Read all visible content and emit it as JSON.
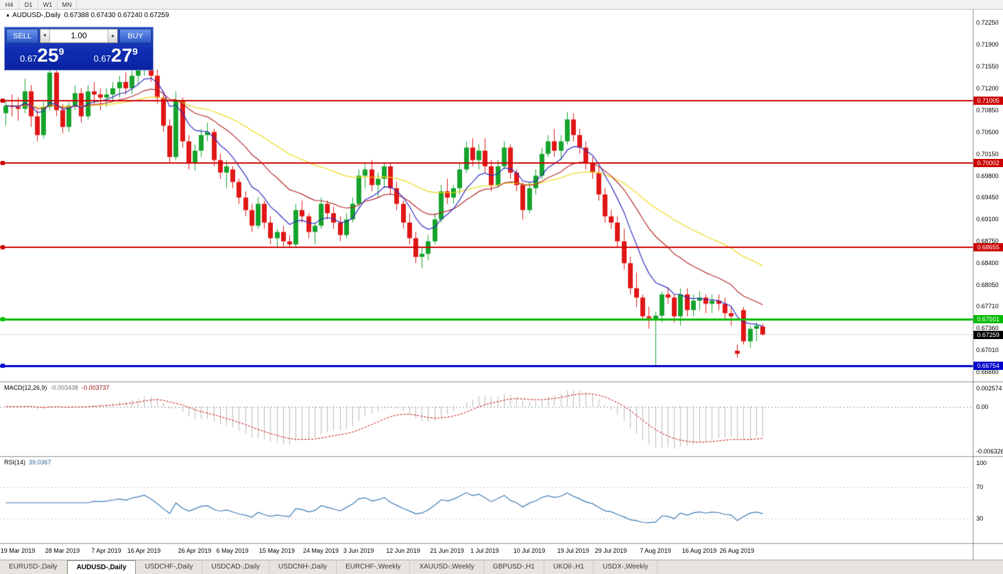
{
  "window": {
    "timeframe_buttons": [
      "H4",
      "D1",
      "W1",
      "MN"
    ]
  },
  "chart_header": {
    "collapse_icon": "▲",
    "symbol": "AUDUSD-,Daily",
    "ohlc": "0.67388 0.67430 0.67240 0.67259"
  },
  "trade_panel": {
    "sell_label": "SELL",
    "buy_label": "BUY",
    "volume": "1.00",
    "sell_price": {
      "prefix": "0.67",
      "big": "25",
      "sup": "9"
    },
    "buy_price": {
      "prefix": "0.67",
      "big": "27",
      "sup": "9"
    }
  },
  "price_axis": {
    "labels": [
      "0.72250",
      "0.71900",
      "0.71550",
      "0.71200",
      "0.70850",
      "0.70500",
      "0.70150",
      "0.69800",
      "0.69450",
      "0.69100",
      "0.68750",
      "0.68400",
      "0.68050",
      "0.67710",
      "0.67360",
      "0.67010",
      "0.66660"
    ]
  },
  "hlines": [
    {
      "value": 0.71005,
      "label": "0.71005",
      "color": "#cc0000",
      "thickness": 2
    },
    {
      "value": 0.70002,
      "label": "0.70002",
      "color": "#cc0000",
      "thickness": 2
    },
    {
      "value": 0.68655,
      "label": "0.68655",
      "color": "#cc0000",
      "thickness": 2
    },
    {
      "value": 0.67501,
      "label": "0.67501",
      "color": "#00bb00",
      "thickness": 3
    },
    {
      "value": 0.66754,
      "label": "0.66754",
      "color": "#0000cc",
      "thickness": 3
    }
  ],
  "current_price": {
    "label": "0.67259",
    "value": 0.67259
  },
  "date_axis": [
    {
      "label": "19 Mar 2019",
      "bar": 2
    },
    {
      "label": "28 Mar 2019",
      "bar": 9
    },
    {
      "label": "7 Apr 2019",
      "bar": 16
    },
    {
      "label": "16 Apr 2019",
      "bar": 22
    },
    {
      "label": "26 Apr 2019",
      "bar": 30
    },
    {
      "label": "6 May 2019",
      "bar": 36
    },
    {
      "label": "15 May 2019",
      "bar": 43
    },
    {
      "label": "24 May 2019",
      "bar": 50
    },
    {
      "label": "3 Jun 2019",
      "bar": 56
    },
    {
      "label": "12 Jun 2019",
      "bar": 63
    },
    {
      "label": "21 Jun 2019",
      "bar": 70
    },
    {
      "label": "1 Jul 2019",
      "bar": 76
    },
    {
      "label": "10 Jul 2019",
      "bar": 83
    },
    {
      "label": "19 Jul 2019",
      "bar": 90
    },
    {
      "label": "29 Jul 2019",
      "bar": 96
    },
    {
      "label": "7 Aug 2019",
      "bar": 103
    },
    {
      "label": "16 Aug 2019",
      "bar": 110
    },
    {
      "label": "26 Aug 2019",
      "bar": 116
    }
  ],
  "macd_panel": {
    "name": "MACD(12,26,9)",
    "value_main": "-0.003438",
    "value_signal": "-0.003737",
    "axis": {
      "top_label": "0.002574",
      "zero_label": "0.00",
      "bottom_label": "-0.006326",
      "top": 0.002574,
      "bottom": -0.006326
    }
  },
  "rsi_panel": {
    "name": "RSI(14)",
    "value": "39.0367",
    "levels": [
      {
        "label": "100",
        "value": 100
      },
      {
        "label": "70",
        "value": 70
      },
      {
        "label": "30",
        "value": 30
      }
    ]
  },
  "tabs": [
    {
      "label": "EURUSD-,Daily",
      "active": false
    },
    {
      "label": "AUDUSD-,Daily",
      "active": true
    },
    {
      "label": "USDCHF-,Daily",
      "active": false
    },
    {
      "label": "USDCAD-,Daily",
      "active": false
    },
    {
      "label": "USDCNH-,Daily",
      "active": false
    },
    {
      "label": "EURCHF-,Weekly",
      "active": false
    },
    {
      "label": "XAUUSD-,Weekly",
      "active": false
    },
    {
      "label": "GBPUSD-,H1",
      "active": false
    },
    {
      "label": "UKOil-,H1",
      "active": false
    },
    {
      "label": "USDX-,Weekly",
      "active": false
    }
  ],
  "colors": {
    "bull": "#16a32c",
    "bear": "#e01616",
    "ma_fast": "#2b2bc0",
    "ma_mid": "#b42828",
    "ma_slow": "#ecd714",
    "macd_hist": "#b9b9b9",
    "macd_signal": "#c40000",
    "rsi": "#3a76b0",
    "current_badge_bg": "#000000"
  },
  "chart_data": {
    "type": "candlestick",
    "symbol": "AUDUSD",
    "timeframe": "Daily",
    "last_bar": {
      "open": 0.67388,
      "high": 0.6743,
      "low": 0.6724,
      "close": 0.67259
    },
    "price_range_shown": [
      0.6666,
      0.7225
    ],
    "candles": [
      [
        0.708,
        0.71,
        0.706,
        0.7092
      ],
      [
        0.7092,
        0.711,
        0.7075,
        0.709
      ],
      [
        0.709,
        0.7105,
        0.7068,
        0.7087
      ],
      [
        0.7087,
        0.7135,
        0.708,
        0.7115
      ],
      [
        0.7115,
        0.7125,
        0.7058,
        0.7075
      ],
      [
        0.7075,
        0.7085,
        0.7035,
        0.7045
      ],
      [
        0.7045,
        0.7098,
        0.704,
        0.709
      ],
      [
        0.709,
        0.7155,
        0.7085,
        0.7145
      ],
      [
        0.7145,
        0.715,
        0.7075,
        0.7085
      ],
      [
        0.7085,
        0.7095,
        0.7048,
        0.7058
      ],
      [
        0.7058,
        0.7098,
        0.705,
        0.7092
      ],
      [
        0.7092,
        0.7125,
        0.7085,
        0.7112
      ],
      [
        0.7112,
        0.712,
        0.7065,
        0.7075
      ],
      [
        0.7075,
        0.7125,
        0.707,
        0.7115
      ],
      [
        0.7115,
        0.713,
        0.7095,
        0.711
      ],
      [
        0.711,
        0.712,
        0.7085,
        0.7105
      ],
      [
        0.7105,
        0.712,
        0.709,
        0.711
      ],
      [
        0.711,
        0.713,
        0.71,
        0.712
      ],
      [
        0.712,
        0.714,
        0.7105,
        0.713
      ],
      [
        0.713,
        0.7145,
        0.711,
        0.712
      ],
      [
        0.712,
        0.715,
        0.711,
        0.714
      ],
      [
        0.714,
        0.716,
        0.7125,
        0.715
      ],
      [
        0.715,
        0.7175,
        0.714,
        0.7165
      ],
      [
        0.7165,
        0.717,
        0.713,
        0.714
      ],
      [
        0.714,
        0.715,
        0.7095,
        0.7105
      ],
      [
        0.7105,
        0.7115,
        0.705,
        0.706
      ],
      [
        0.706,
        0.707,
        0.7,
        0.701
      ],
      [
        0.701,
        0.7115,
        0.7005,
        0.71
      ],
      [
        0.71,
        0.7105,
        0.7025,
        0.7035
      ],
      [
        0.7035,
        0.7045,
        0.699,
        0.7
      ],
      [
        0.7,
        0.703,
        0.6988,
        0.702
      ],
      [
        0.702,
        0.7055,
        0.701,
        0.7045
      ],
      [
        0.7045,
        0.7065,
        0.7035,
        0.705
      ],
      [
        0.705,
        0.7055,
        0.6995,
        0.7005
      ],
      [
        0.7005,
        0.7015,
        0.6975,
        0.6985
      ],
      [
        0.6985,
        0.7005,
        0.696,
        0.6995
      ],
      [
        0.699,
        0.6995,
        0.696,
        0.697
      ],
      [
        0.697,
        0.6975,
        0.6935,
        0.6945
      ],
      [
        0.6945,
        0.6955,
        0.6915,
        0.6925
      ],
      [
        0.6925,
        0.6935,
        0.689,
        0.69
      ],
      [
        0.69,
        0.6945,
        0.6895,
        0.6935
      ],
      [
        0.6935,
        0.694,
        0.6895,
        0.6905
      ],
      [
        0.6905,
        0.6915,
        0.687,
        0.688
      ],
      [
        0.688,
        0.6895,
        0.6865,
        0.689
      ],
      [
        0.689,
        0.69,
        0.6867,
        0.6875
      ],
      [
        0.6875,
        0.6885,
        0.6865,
        0.687
      ],
      [
        0.687,
        0.6935,
        0.6866,
        0.6925
      ],
      [
        0.6925,
        0.694,
        0.6905,
        0.6915
      ],
      [
        0.6915,
        0.692,
        0.688,
        0.689
      ],
      [
        0.689,
        0.6905,
        0.687,
        0.69
      ],
      [
        0.69,
        0.6945,
        0.6895,
        0.6935
      ],
      [
        0.6935,
        0.694,
        0.691,
        0.692
      ],
      [
        0.692,
        0.693,
        0.6895,
        0.6905
      ],
      [
        0.6905,
        0.6915,
        0.6875,
        0.6885
      ],
      [
        0.6885,
        0.692,
        0.688,
        0.691
      ],
      [
        0.691,
        0.6945,
        0.6905,
        0.6935
      ],
      [
        0.6935,
        0.699,
        0.693,
        0.698
      ],
      [
        0.698,
        0.7,
        0.696,
        0.699
      ],
      [
        0.699,
        0.7005,
        0.6955,
        0.6965
      ],
      [
        0.6965,
        0.6985,
        0.6945,
        0.6975
      ],
      [
        0.6975,
        0.7,
        0.696,
        0.6995
      ],
      [
        0.6995,
        0.7,
        0.695,
        0.696
      ],
      [
        0.696,
        0.697,
        0.6925,
        0.6935
      ],
      [
        0.6935,
        0.694,
        0.6895,
        0.6905
      ],
      [
        0.6905,
        0.692,
        0.687,
        0.688
      ],
      [
        0.688,
        0.689,
        0.684,
        0.685
      ],
      [
        0.685,
        0.6865,
        0.6832,
        0.6855
      ],
      [
        0.6855,
        0.6885,
        0.6845,
        0.6875
      ],
      [
        0.6875,
        0.692,
        0.687,
        0.691
      ],
      [
        0.691,
        0.6965,
        0.6905,
        0.6955
      ],
      [
        0.6955,
        0.6975,
        0.6935,
        0.6945
      ],
      [
        0.6945,
        0.6965,
        0.6935,
        0.696
      ],
      [
        0.696,
        0.7,
        0.695,
        0.699
      ],
      [
        0.699,
        0.7035,
        0.6985,
        0.7025
      ],
      [
        0.7025,
        0.704,
        0.6995,
        0.7005
      ],
      [
        0.7005,
        0.703,
        0.699,
        0.702
      ],
      [
        0.702,
        0.704,
        0.6985,
        0.6995
      ],
      [
        0.6995,
        0.7005,
        0.6955,
        0.6965
      ],
      [
        0.6965,
        0.7005,
        0.696,
        0.6995
      ],
      [
        0.6995,
        0.7035,
        0.699,
        0.7025
      ],
      [
        0.7025,
        0.703,
        0.6975,
        0.6985
      ],
      [
        0.6985,
        0.699,
        0.6955,
        0.6965
      ],
      [
        0.6965,
        0.697,
        0.691,
        0.6925
      ],
      [
        0.6925,
        0.697,
        0.692,
        0.696
      ],
      [
        0.696,
        0.699,
        0.695,
        0.698
      ],
      [
        0.698,
        0.7025,
        0.6975,
        0.7015
      ],
      [
        0.7015,
        0.7045,
        0.701,
        0.7035
      ],
      [
        0.7035,
        0.7055,
        0.701,
        0.702
      ],
      [
        0.702,
        0.7045,
        0.7005,
        0.7035
      ],
      [
        0.7035,
        0.7082,
        0.703,
        0.707
      ],
      [
        0.707,
        0.708,
        0.7035,
        0.7045
      ],
      [
        0.7045,
        0.7055,
        0.7015,
        0.7025
      ],
      [
        0.7025,
        0.7035,
        0.699,
        0.7
      ],
      [
        0.7,
        0.701,
        0.6975,
        0.6985
      ],
      [
        0.6985,
        0.6995,
        0.694,
        0.695
      ],
      [
        0.695,
        0.696,
        0.6905,
        0.6915
      ],
      [
        0.6915,
        0.6925,
        0.6895,
        0.6905
      ],
      [
        0.6905,
        0.6915,
        0.6865,
        0.6875
      ],
      [
        0.6875,
        0.6895,
        0.683,
        0.684
      ],
      [
        0.684,
        0.685,
        0.679,
        0.68
      ],
      [
        0.68,
        0.6825,
        0.677,
        0.6785
      ],
      [
        0.6785,
        0.679,
        0.6748,
        0.6755
      ],
      [
        0.6755,
        0.677,
        0.6735,
        0.6752
      ],
      [
        0.675,
        0.6762,
        0.6677,
        0.6756
      ],
      [
        0.6756,
        0.6795,
        0.6745,
        0.679
      ],
      [
        0.679,
        0.68,
        0.6775,
        0.6785
      ],
      [
        0.6785,
        0.679,
        0.6745,
        0.6755
      ],
      [
        0.6755,
        0.68,
        0.674,
        0.679
      ],
      [
        0.679,
        0.68,
        0.6755,
        0.6765
      ],
      [
        0.6765,
        0.679,
        0.6755,
        0.678
      ],
      [
        0.678,
        0.6795,
        0.6765,
        0.6785
      ],
      [
        0.6785,
        0.679,
        0.676,
        0.6775
      ],
      [
        0.6775,
        0.679,
        0.676,
        0.678
      ],
      [
        0.678,
        0.679,
        0.6765,
        0.6775
      ],
      [
        0.6775,
        0.6785,
        0.675,
        0.676
      ],
      [
        0.676,
        0.677,
        0.674,
        0.6755
      ],
      [
        0.67,
        0.671,
        0.6689,
        0.6695
      ],
      [
        0.6765,
        0.677,
        0.671,
        0.6715
      ],
      [
        0.6715,
        0.674,
        0.6705,
        0.6735
      ],
      [
        0.6735,
        0.6745,
        0.6715,
        0.674
      ],
      [
        0.67388,
        0.6743,
        0.6724,
        0.67259
      ]
    ]
  }
}
